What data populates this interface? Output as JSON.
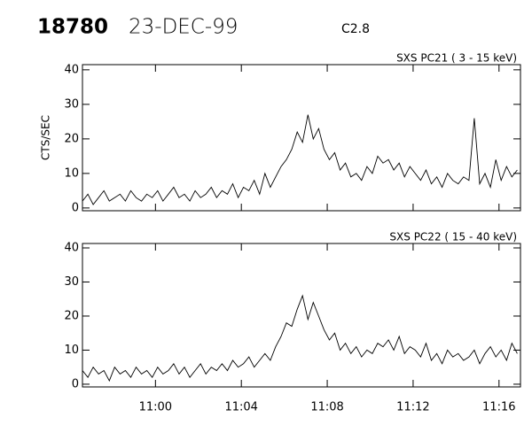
{
  "header": {
    "id": "18780",
    "date": "23-DEC-99",
    "flare_class": "C2.8"
  },
  "chart_data": [
    {
      "type": "line",
      "title": "SXS PC21  (  3 - 15 keV)",
      "ylabel": "CTS/SEC",
      "color": "#000000",
      "xlim": [
        656.6,
        677
      ],
      "ylim": [
        -0.8,
        41.5
      ],
      "yticks": [
        0,
        10,
        20,
        30,
        40
      ],
      "x": [
        656.6,
        656.85,
        657.1,
        657.35,
        657.6,
        657.85,
        658.1,
        658.35,
        658.6,
        658.85,
        659.1,
        659.35,
        659.6,
        659.85,
        660.1,
        660.35,
        660.6,
        660.85,
        661.1,
        661.35,
        661.6,
        661.85,
        662.1,
        662.35,
        662.6,
        662.85,
        663.1,
        663.35,
        663.6,
        663.85,
        664.1,
        664.35,
        664.6,
        664.85,
        665.1,
        665.35,
        665.6,
        665.85,
        666.1,
        666.35,
        666.6,
        666.85,
        667.1,
        667.35,
        667.6,
        667.85,
        668.1,
        668.35,
        668.6,
        668.85,
        669.1,
        669.35,
        669.6,
        669.85,
        670.1,
        670.35,
        670.6,
        670.85,
        671.1,
        671.35,
        671.6,
        671.85,
        672.1,
        672.35,
        672.6,
        672.85,
        673.1,
        673.35,
        673.6,
        673.85,
        674.1,
        674.35,
        674.6,
        674.85,
        675.1,
        675.35,
        675.6,
        675.85,
        676.1,
        676.35,
        676.6,
        676.85
      ],
      "values": [
        2,
        4,
        1,
        3,
        5,
        2,
        3,
        4,
        2,
        5,
        3,
        2,
        4,
        3,
        5,
        2,
        4,
        6,
        3,
        4,
        2,
        5,
        3,
        4,
        6,
        3,
        5,
        4,
        7,
        3,
        6,
        5,
        8,
        4,
        10,
        6,
        9,
        12,
        14,
        17,
        22,
        19,
        27,
        20,
        23,
        17,
        14,
        16,
        11,
        13,
        9,
        10,
        8,
        12,
        10,
        15,
        13,
        14,
        11,
        13,
        9,
        12,
        10,
        8,
        11,
        7,
        9,
        6,
        10,
        8,
        7,
        9,
        8,
        26,
        7,
        10,
        6,
        14,
        8,
        12,
        9,
        11
      ]
    },
    {
      "type": "line",
      "title": "SXS PC22  ( 15 - 40 keV)",
      "color": "#000000",
      "xlim": [
        656.6,
        677
      ],
      "ylim": [
        -0.8,
        41.3
      ],
      "yticks": [
        0,
        10,
        20,
        30,
        40
      ],
      "xticks": [
        {
          "value": 660,
          "label": "11:00"
        },
        {
          "value": 664,
          "label": "11:04"
        },
        {
          "value": 668,
          "label": "11:08"
        },
        {
          "value": 672,
          "label": "11:12"
        },
        {
          "value": 676,
          "label": "11:16"
        }
      ],
      "x": [
        656.6,
        656.85,
        657.1,
        657.35,
        657.6,
        657.85,
        658.1,
        658.35,
        658.6,
        658.85,
        659.1,
        659.35,
        659.6,
        659.85,
        660.1,
        660.35,
        660.6,
        660.85,
        661.1,
        661.35,
        661.6,
        661.85,
        662.1,
        662.35,
        662.6,
        662.85,
        663.1,
        663.35,
        663.6,
        663.85,
        664.1,
        664.35,
        664.6,
        664.85,
        665.1,
        665.35,
        665.6,
        665.85,
        666.1,
        666.35,
        666.6,
        666.85,
        667.1,
        667.35,
        667.6,
        667.85,
        668.1,
        668.35,
        668.6,
        668.85,
        669.1,
        669.35,
        669.6,
        669.85,
        670.1,
        670.35,
        670.6,
        670.85,
        671.1,
        671.35,
        671.6,
        671.85,
        672.1,
        672.35,
        672.6,
        672.85,
        673.1,
        673.35,
        673.6,
        673.85,
        674.1,
        674.35,
        674.6,
        674.85,
        675.1,
        675.35,
        675.6,
        675.85,
        676.1,
        676.35,
        676.6,
        676.85
      ],
      "values": [
        4,
        2,
        5,
        3,
        4,
        1,
        5,
        3,
        4,
        2,
        5,
        3,
        4,
        2,
        5,
        3,
        4,
        6,
        3,
        5,
        2,
        4,
        6,
        3,
        5,
        4,
        6,
        4,
        7,
        5,
        6,
        8,
        5,
        7,
        9,
        7,
        11,
        14,
        18,
        17,
        22,
        26,
        19,
        24,
        20,
        16,
        13,
        15,
        10,
        12,
        9,
        11,
        8,
        10,
        9,
        12,
        11,
        13,
        10,
        14,
        9,
        11,
        10,
        8,
        12,
        7,
        9,
        6,
        10,
        8,
        9,
        7,
        8,
        10,
        6,
        9,
        11,
        8,
        10,
        7,
        12,
        9
      ]
    }
  ]
}
